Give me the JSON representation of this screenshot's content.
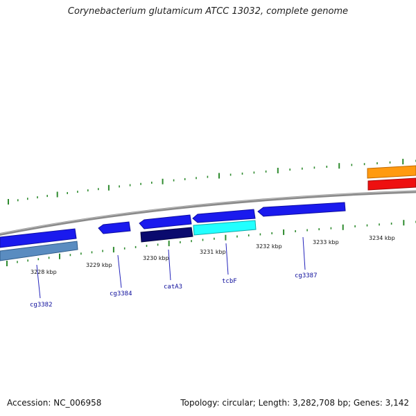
{
  "header": {
    "title": "Corynebacterium glutamicum ATCC 13032, complete genome"
  },
  "footer": {
    "accession": "Accession: NC_006958",
    "summary": "Topology: circular; Length: 3,282,708 bp; Genes: 3,142"
  },
  "tick_labels": [
    "3228 kbp",
    "3229 kbp",
    "3230 kbp",
    "3231 kbp",
    "3232 kbp",
    "3233 kbp",
    "3234 kbp"
  ],
  "gene_labels": [
    "cg3382",
    "cg3384",
    "catA3",
    "tcbF",
    "cg3387"
  ],
  "colors": {
    "backbone": "#8a8a8a",
    "tick": "#2e8b2e",
    "gene_blue": "#1a1aee",
    "gene_steel": "#5a8cc0",
    "gene_navy": "#0a0a6e",
    "gene_cyan": "#22ffff",
    "gene_orange": "#ff9a10",
    "gene_red": "#ee1010",
    "label_line": "#2222bb"
  }
}
